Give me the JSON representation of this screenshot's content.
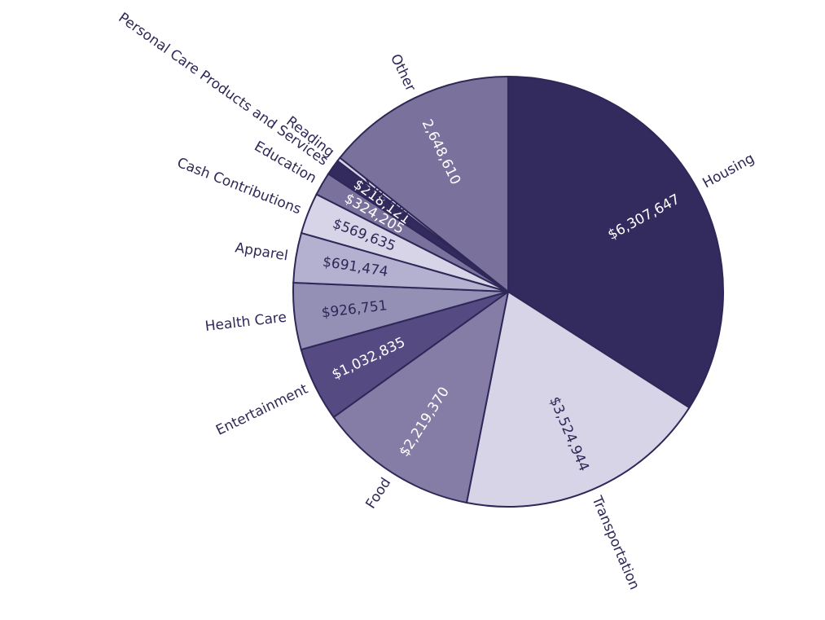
{
  "chart_data": {
    "type": "pie",
    "categories": [
      "Housing",
      "Transportation",
      "Food",
      "Entertainment",
      "Health Care",
      "Apparel",
      "Cash Contributions",
      "Education",
      "Personal Care Products and Services",
      "Reading",
      "Other"
    ],
    "values": [
      6307647,
      3524944,
      2219370,
      1032835,
      926751,
      691474,
      569635,
      324205,
      218121,
      54268,
      2648610
    ],
    "value_labels": [
      "$6,307,647",
      "$3,524,944",
      "$2,219,370",
      "$1,032,835",
      "$926,751",
      "$691,474",
      "$569,635",
      "$324,205",
      "$218,121",
      "$54,268",
      "2,648,610"
    ],
    "colors": [
      "#332a5e",
      "#d6d4e6",
      "#857da6",
      "#564a82",
      "#938fb5",
      "#b4b0d0",
      "#d6d4e6",
      "#7a719d",
      "#332a5e",
      "#d6d4e6",
      "#7a719d"
    ]
  }
}
